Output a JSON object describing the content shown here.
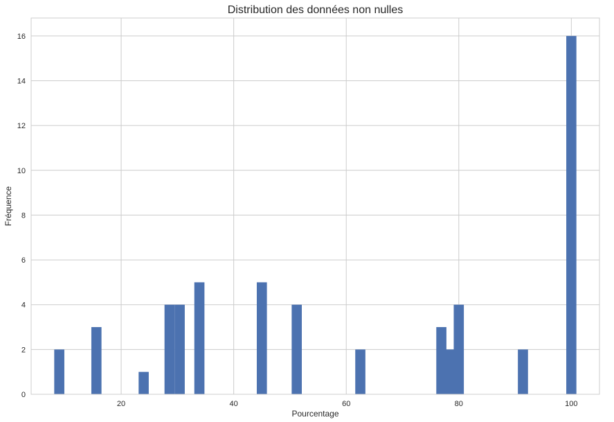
{
  "chart_data": {
    "type": "bar",
    "title": "Distribution des données non nulles",
    "xlabel": "Pourcentage",
    "ylabel": "Fréquence",
    "xlim": [
      4,
      105
    ],
    "ylim": [
      0,
      16.8
    ],
    "xticks": [
      20,
      40,
      60,
      80,
      100
    ],
    "yticks": [
      0,
      2,
      4,
      6,
      8,
      10,
      12,
      14,
      16
    ],
    "grid": true,
    "bar_color": "#4c72b0",
    "bin_width": 1.8,
    "bins": [
      {
        "x": 9.0,
        "value": 2
      },
      {
        "x": 15.6,
        "value": 3
      },
      {
        "x": 24.0,
        "value": 1
      },
      {
        "x": 28.6,
        "value": 4
      },
      {
        "x": 30.4,
        "value": 4
      },
      {
        "x": 33.9,
        "value": 5
      },
      {
        "x": 45.0,
        "value": 5
      },
      {
        "x": 51.2,
        "value": 4
      },
      {
        "x": 62.5,
        "value": 2
      },
      {
        "x": 76.9,
        "value": 3
      },
      {
        "x": 78.6,
        "value": 2
      },
      {
        "x": 80.0,
        "value": 4
      },
      {
        "x": 91.4,
        "value": 2
      },
      {
        "x": 100.0,
        "value": 16
      }
    ]
  }
}
